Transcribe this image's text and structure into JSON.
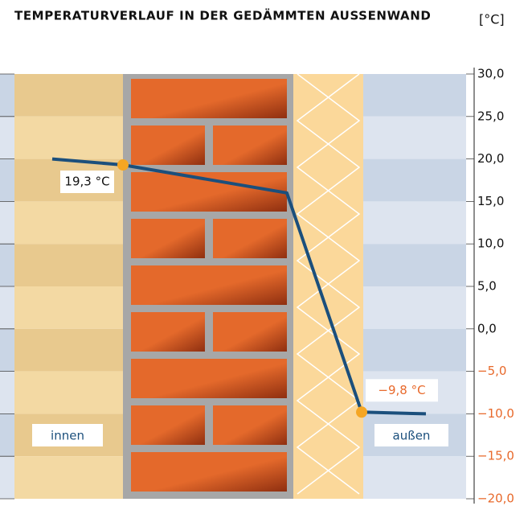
{
  "chart_data": {
    "type": "line",
    "title": "TEMPERATURVERLAUF IN DER GEDÄMMTEN AUSSENWAND",
    "unit": "[°C]",
    "ylim": [
      -20,
      30
    ],
    "yticks": [
      {
        "value": 30,
        "label": "30,0"
      },
      {
        "value": 25,
        "label": "25,0"
      },
      {
        "value": 20,
        "label": "20,0"
      },
      {
        "value": 15,
        "label": "15,0"
      },
      {
        "value": 10,
        "label": "10,0"
      },
      {
        "value": 5,
        "label": "5,0"
      },
      {
        "value": 0,
        "label": "0,0"
      },
      {
        "value": -5,
        "label": "−5,0"
      },
      {
        "value": -10,
        "label": "−10,0"
      },
      {
        "value": -15,
        "label": "−15,0"
      },
      {
        "value": -20,
        "label": "−20,0"
      }
    ],
    "values": [
      20,
      19.3,
      16,
      -9.8,
      -10
    ],
    "value_labels": [
      null,
      "19,3 °C",
      null,
      "−9,8 °C",
      null
    ],
    "color": "#1b4f7c",
    "point_color": "#f5a623",
    "negative_color": "#e8692b",
    "zones": [
      "innen",
      "außen"
    ],
    "grid": true
  }
}
